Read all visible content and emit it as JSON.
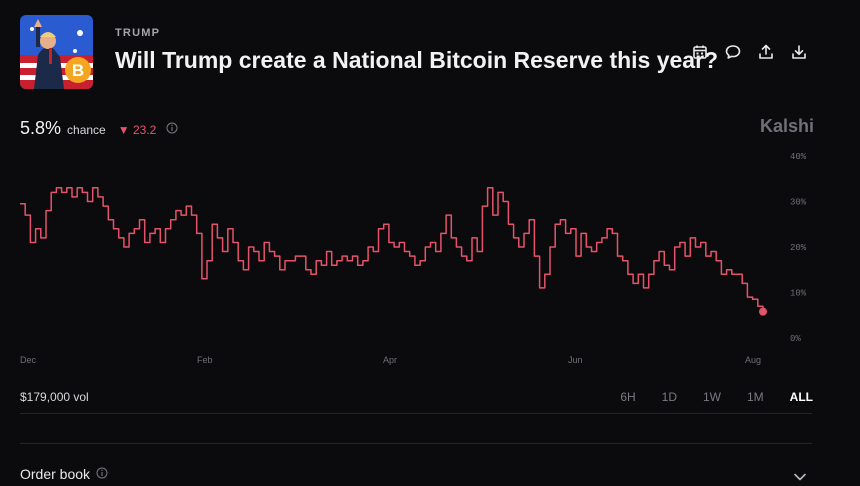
{
  "header": {
    "category": "TRUMP",
    "title": "Will Trump create a National Bitcoin Reserve this year?",
    "thumbnail_icon": "trump-bitcoin-thumbnail"
  },
  "actions": [
    {
      "name": "calendar-icon"
    },
    {
      "name": "comment-icon"
    },
    {
      "name": "share-icon"
    },
    {
      "name": "download-icon"
    }
  ],
  "stats": {
    "probability": "5.8%",
    "probability_label": "chance",
    "change": "23.2",
    "change_direction": "down",
    "change_color": "#e5536b"
  },
  "brand": "Kalshi",
  "chart_data": {
    "type": "line",
    "series": [
      {
        "color": "#e5536b",
        "values": [
          29.5,
          27,
          21,
          24,
          22,
          28,
          32,
          33,
          32,
          33,
          31,
          33,
          32,
          30,
          33,
          31,
          29,
          26,
          24,
          22,
          20,
          23,
          24,
          26,
          21,
          23,
          24,
          21,
          24,
          26,
          28,
          27,
          29,
          27,
          23,
          13,
          17,
          25,
          22,
          19,
          24,
          21,
          17,
          15,
          20,
          19,
          17,
          21,
          19,
          18,
          15,
          17,
          17,
          18,
          18,
          15,
          14,
          17,
          16,
          19,
          16,
          17,
          18,
          17,
          18,
          16,
          17,
          20,
          19,
          24,
          25,
          21,
          20,
          21,
          19,
          18,
          16,
          17,
          20,
          21,
          19,
          23,
          27,
          22,
          20,
          18,
          17,
          22,
          19,
          29,
          33,
          27,
          32,
          30,
          25,
          22,
          20,
          23,
          26,
          18,
          11,
          14,
          20,
          25,
          26,
          23,
          24,
          18,
          23,
          20,
          19,
          21,
          22,
          24,
          23,
          18,
          17,
          14,
          12,
          14,
          11,
          14,
          17,
          19,
          16,
          15,
          20,
          21,
          18,
          22,
          20,
          21,
          18,
          19,
          17,
          14,
          15,
          14,
          14,
          12,
          9,
          8.5,
          7,
          5.8
        ]
      }
    ],
    "x_tick_labels": [
      "Dec",
      "Feb",
      "Apr",
      "Jun",
      "Aug"
    ],
    "y_tick_labels": [
      "40%",
      "30%",
      "20%",
      "10%",
      "0%"
    ],
    "ylim": [
      0,
      40
    ],
    "last_point": 5.8,
    "grid": false
  },
  "footer": {
    "volume": "$179,000 vol",
    "ranges": [
      "6H",
      "1D",
      "1W",
      "1M",
      "ALL"
    ],
    "active_range": "ALL",
    "order_book_label": "Order book"
  }
}
